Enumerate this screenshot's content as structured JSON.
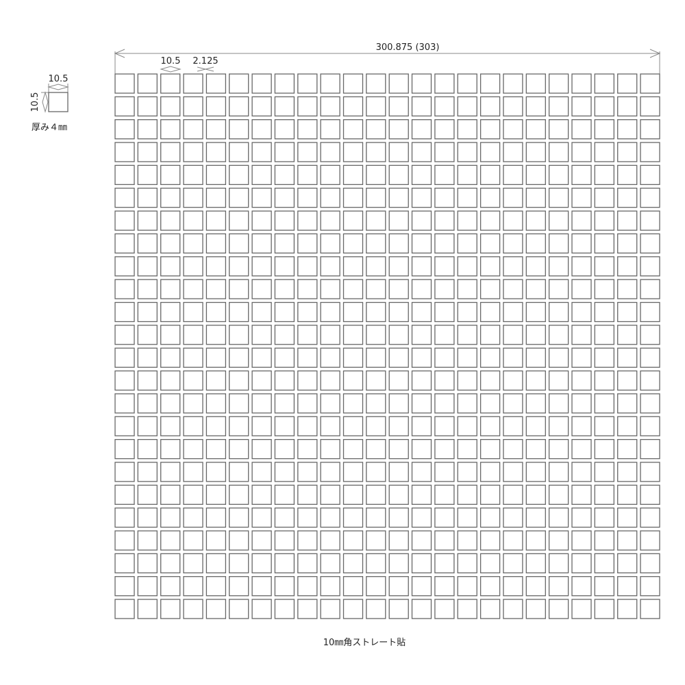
{
  "diagram": {
    "overall_width_label": "300.875 (303)",
    "tile_size_label": "10.5",
    "joint_width_label": "2.125",
    "sample_tile": {
      "width_label": "10.5",
      "height_label": "10.5",
      "thickness_label": "厚み４㎜"
    },
    "grid": {
      "columns": 24,
      "rows": 24
    },
    "caption": "10㎜角ストレート貼",
    "colors": {
      "tile_stroke": "#666666",
      "dimension_line": "#888888",
      "text": "#222222"
    }
  }
}
